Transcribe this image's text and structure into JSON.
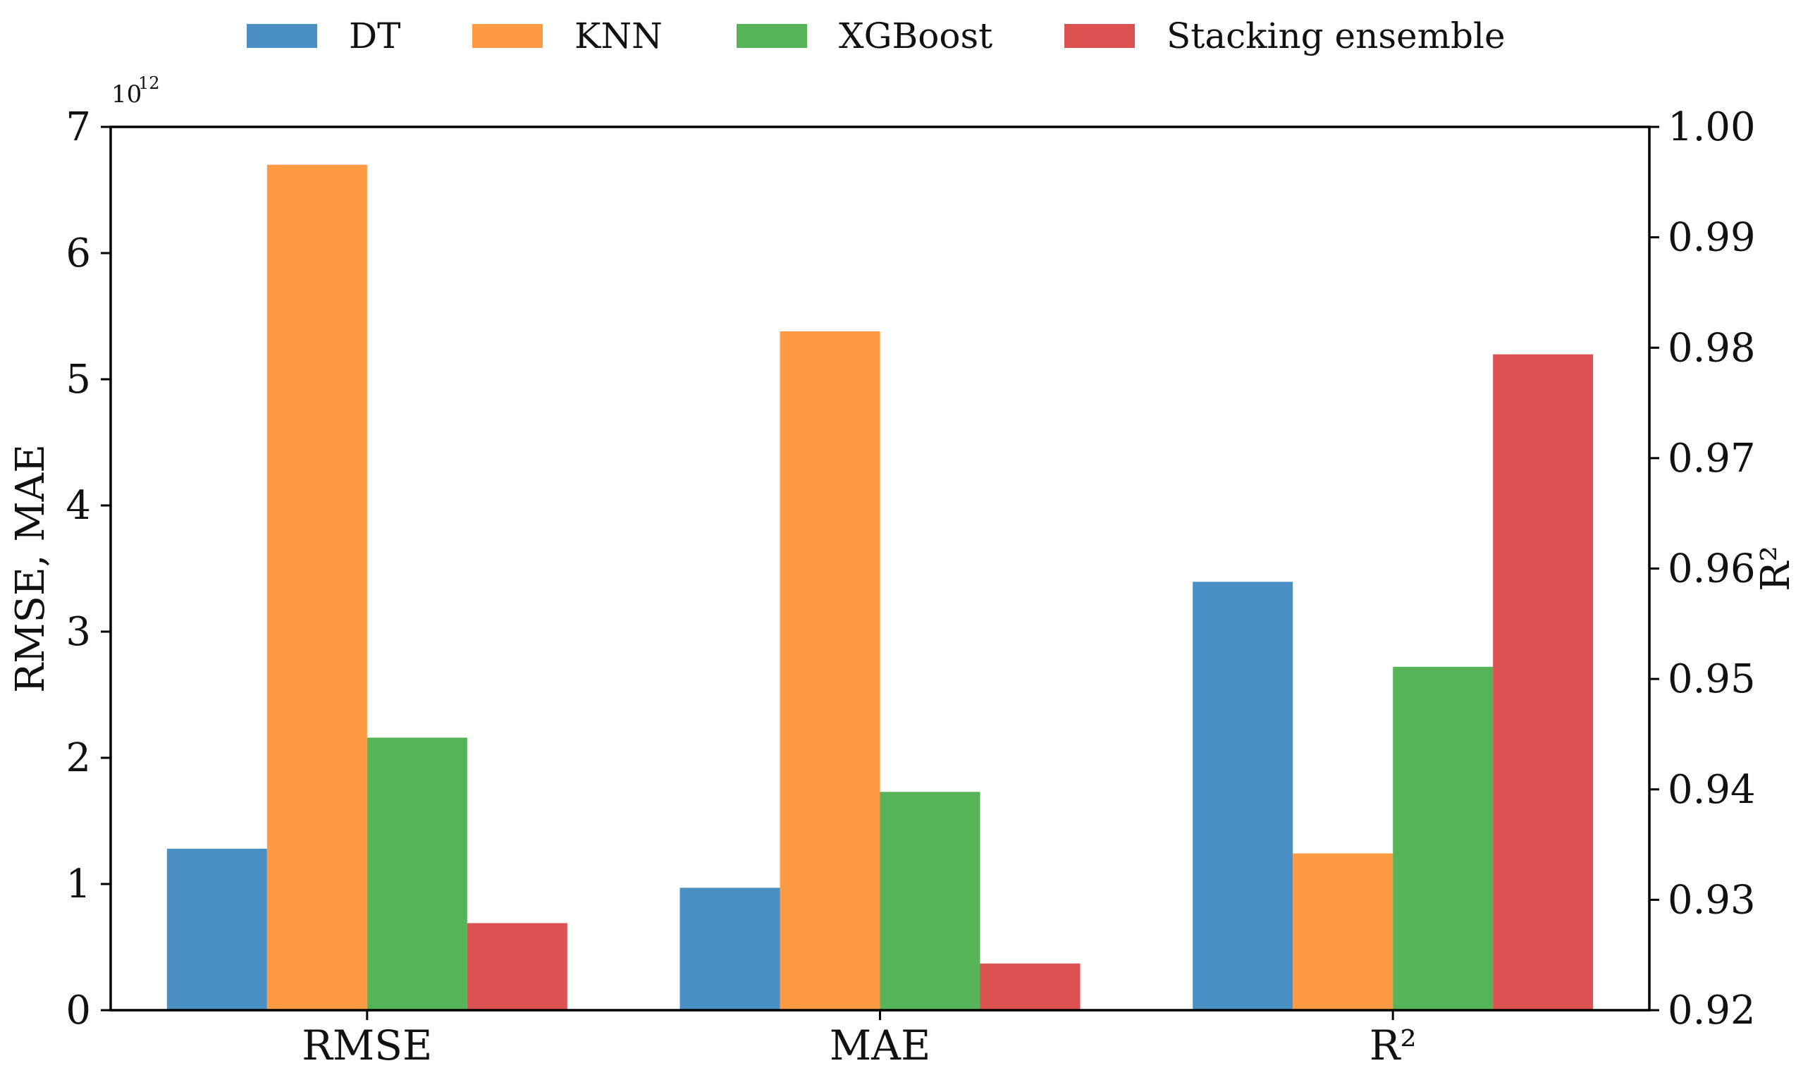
{
  "chart_data": {
    "type": "bar",
    "categories": [
      "RMSE",
      "MAE",
      "R²"
    ],
    "series": [
      {
        "name": "DT",
        "color": "#4a90c4",
        "values": [
          1.28,
          0.97,
          0.9588
        ]
      },
      {
        "name": "KNN",
        "color": "#fd9a42",
        "values": [
          6.7,
          5.38,
          0.9342
        ]
      },
      {
        "name": "XGBoost",
        "color": "#57b357",
        "values": [
          2.16,
          1.73,
          0.9511
        ]
      },
      {
        "name": "Stacking ensemble",
        "color": "#dc5253",
        "values": [
          0.69,
          0.37,
          0.9794
        ]
      }
    ],
    "left_axis": {
      "label": "RMSE, MAE",
      "multiplier": "10",
      "exponent": "12",
      "ylim": [
        0,
        7
      ],
      "ticks": [
        "0",
        "1",
        "2",
        "3",
        "4",
        "5",
        "6",
        "7"
      ]
    },
    "right_axis": {
      "label": "R²",
      "applies_to": "R²",
      "ylim": [
        0.92,
        1.0
      ],
      "ticks": [
        "0.92",
        "0.93",
        "0.94",
        "0.95",
        "0.96",
        "0.97",
        "0.98",
        "0.99",
        "1.00"
      ]
    },
    "legend": {
      "placement": "top-center"
    },
    "grid": false
  }
}
